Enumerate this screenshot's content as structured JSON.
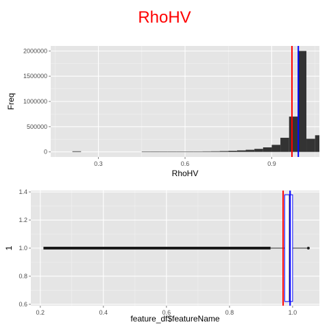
{
  "page_title": "RhoHV",
  "colors": {
    "panel_bg": "#e5e5e5",
    "grid_major": "#ffffff",
    "grid_minor": "#f2f2f2",
    "bar_fill": "#333333",
    "mean_line": "#ff0000",
    "median_line": "#0000ff",
    "box_outline": "#0000ff"
  },
  "chart_data": [
    {
      "type": "bar",
      "subtype": "histogram",
      "title": "RhoHV",
      "xlabel": "RhoHV",
      "ylabel": "Freq",
      "xlim": [
        0.135,
        1.065
      ],
      "ylim": [
        -100000,
        2100000
      ],
      "xticks": [
        0.3,
        0.6,
        0.9
      ],
      "xtick_labels": [
        "0.3",
        "0.6",
        "0.9"
      ],
      "yticks": [
        0,
        500000,
        1000000,
        1500000,
        2000000
      ],
      "ytick_labels": [
        "0",
        "500000",
        "1000000",
        "1500000",
        "2000000"
      ],
      "bin_width": 0.03,
      "bins": [
        {
          "x0": 0.21,
          "x1": 0.24,
          "value": 12000
        },
        {
          "x0": 0.45,
          "x1": 0.48,
          "value": 4000
        },
        {
          "x0": 0.48,
          "x1": 0.51,
          "value": 4000
        },
        {
          "x0": 0.51,
          "x1": 0.54,
          "value": 5000
        },
        {
          "x0": 0.54,
          "x1": 0.57,
          "value": 5000
        },
        {
          "x0": 0.57,
          "x1": 0.6,
          "value": 6000
        },
        {
          "x0": 0.6,
          "x1": 0.63,
          "value": 7000
        },
        {
          "x0": 0.63,
          "x1": 0.66,
          "value": 8000
        },
        {
          "x0": 0.66,
          "x1": 0.69,
          "value": 10000
        },
        {
          "x0": 0.69,
          "x1": 0.72,
          "value": 12000
        },
        {
          "x0": 0.72,
          "x1": 0.75,
          "value": 16000
        },
        {
          "x0": 0.75,
          "x1": 0.78,
          "value": 22000
        },
        {
          "x0": 0.78,
          "x1": 0.81,
          "value": 30000
        },
        {
          "x0": 0.81,
          "x1": 0.84,
          "value": 42000
        },
        {
          "x0": 0.84,
          "x1": 0.87,
          "value": 60000
        },
        {
          "x0": 0.87,
          "x1": 0.9,
          "value": 90000
        },
        {
          "x0": 0.9,
          "x1": 0.93,
          "value": 140000
        },
        {
          "x0": 0.93,
          "x1": 0.96,
          "value": 280000
        },
        {
          "x0": 0.96,
          "x1": 0.99,
          "value": 700000
        },
        {
          "x0": 0.99,
          "x1": 1.02,
          "value": 2000000
        },
        {
          "x0": 1.02,
          "x1": 1.05,
          "value": 260000
        },
        {
          "x0": 1.05,
          "x1": 1.08,
          "value": 330000
        }
      ],
      "vlines": [
        {
          "x": 0.97,
          "color": "#ff0000"
        },
        {
          "x": 0.992,
          "color": "#0000ff"
        }
      ]
    },
    {
      "type": "box",
      "xlabel": "feature_df$featureName",
      "ylabel": "1",
      "xlim": [
        0.17,
        1.085
      ],
      "ylim": [
        0.59,
        1.41
      ],
      "xticks": [
        0.2,
        0.4,
        0.6,
        0.8,
        1.0
      ],
      "xtick_labels": [
        "0.2",
        "0.4",
        "0.6",
        "0.8",
        "1.0"
      ],
      "yticks": [
        0.6,
        0.8,
        1.0,
        1.2,
        1.4
      ],
      "ytick_labels": [
        "0.6",
        "0.8",
        "1.0",
        "1.2",
        "1.4"
      ],
      "box": {
        "y": 1.0,
        "q1": 0.975,
        "median": 0.99,
        "q3": 1.0,
        "whisker_low": 0.93,
        "whisker_high": 1.05,
        "box_ymin": 0.62,
        "box_ymax": 1.38
      },
      "outliers": {
        "from": 0.21,
        "to": 0.93,
        "y": 1.0
      },
      "outlier_high": 1.05,
      "vlines": [
        {
          "x": 0.97,
          "color": "#ff0000"
        },
        {
          "x": 0.992,
          "color": "#0000ff"
        }
      ]
    }
  ]
}
